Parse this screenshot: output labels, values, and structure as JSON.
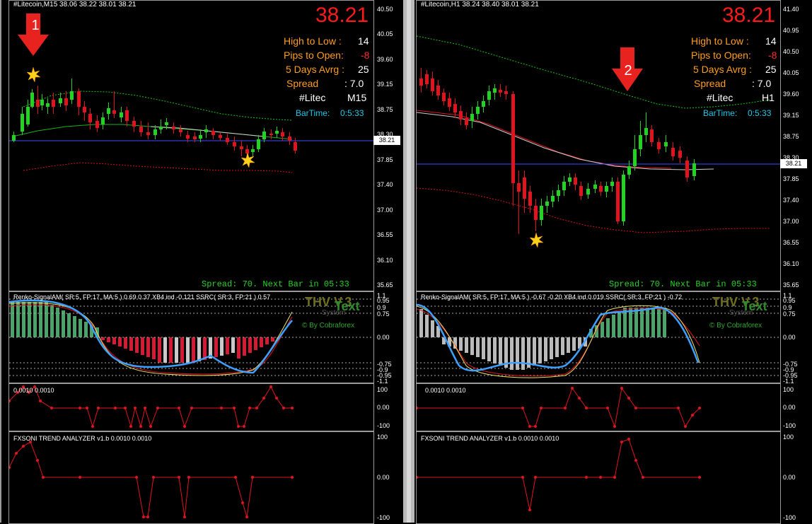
{
  "charts": [
    {
      "id": "left",
      "title": "#Litecoin,M15  38.06 38.22 38.01 38.21",
      "big_price": "38.21",
      "info": {
        "high_to_low_label": "High to Low  :",
        "high_to_low": "14",
        "pips_to_open_label": "Pips to Open:",
        "pips_to_open": "-8",
        "days_avg_label": "5 Days Avrg :",
        "days_avg": "25",
        "spread_label": "Spread",
        "spread": ":   7.0",
        "symbol": "#Litec",
        "timeframe": "M15",
        "bartime_label": "BarTime:",
        "bartime": "0:5:33"
      },
      "arrow_number": "1",
      "spread_line": "Spread: 70. Next Bar in 05:33",
      "price_tag": "38.21",
      "price_ticks": [
        "40.50",
        "40.05",
        "39.60",
        "39.15",
        "38.75",
        "38.30",
        "37.85",
        "37.40",
        "37.00",
        "36.55",
        "36.10",
        "35.65"
      ],
      "renko_label": "Renko-SignalAM( SR:5, FP:17, MA:5 ) 0.69 0.37  XB4 ind -0.121  SSRC( SR:3, FP:21 ) 0.57",
      "renko_ticks": [
        "1.1",
        "0.95",
        "0.9",
        "0.75",
        "0.00",
        "-0.75",
        "-0.9",
        "-0.95",
        "-1.1"
      ],
      "thv": "THV V.3",
      "thv_sub": "System",
      "thv_text": "Text",
      "by": "© By Cobraforex",
      "ind2_label": "0.0010 0.0010",
      "ind2_ticks": [
        "100",
        "0.00",
        "-100"
      ],
      "fx_label": "FXSONI TREND ANALYZER v1.b 0.0010 0.0010",
      "fx_ticks": [
        "100",
        "0.00",
        "-100"
      ]
    },
    {
      "id": "right",
      "title": "#Litecoin,H1  38.24 38.40 38.01 38.21",
      "big_price": "38.21",
      "info": {
        "high_to_low_label": "High to Low  :",
        "high_to_low": "14",
        "pips_to_open_label": "Pips to Open:",
        "pips_to_open": "-8",
        "days_avg_label": "5 Days Avrg :",
        "days_avg": "25",
        "spread_label": "Spread",
        "spread": ":   7.0",
        "symbol": "#Litec",
        "timeframe": "H1",
        "bartime_label": "BarTime:",
        "bartime": "0:5:33"
      },
      "arrow_number": "2",
      "spread_line": "Spread: 70. Next Bar in 05:33",
      "price_tag": "38.21",
      "price_ticks": [
        "41.40",
        "40.95",
        "40.50",
        "40.05",
        "39.60",
        "39.15",
        "38.75",
        "38.30",
        "37.85",
        "37.40",
        "37.00",
        "36.55",
        "36.10",
        "35.65"
      ],
      "renko_label": "Renko-SignalAM( SR:5, FP:17, MA:5 ) -0.67 -0.20  XB4 ind 0.019  SSRC( SR:3, FP:21 ) -0.72",
      "renko_ticks": [
        "1.1",
        "0.95",
        "0.9",
        "0.75",
        "0.00",
        "-0.75",
        "-0.9",
        "-0.95",
        "-1.1"
      ],
      "thv": "THV V.3",
      "thv_sub": "System",
      "thv_text": "Text",
      "by": "© By Cobraforex",
      "ind2_label": "0.0010 0.0010",
      "ind2_ticks": [
        "100",
        "0.00",
        "-100"
      ],
      "fx_label": "FXSONI TREND ANALYZER v1.b 0.0010 0.0010",
      "fx_ticks": [
        "100",
        "0.00",
        "-100"
      ]
    }
  ],
  "colors": {
    "bull": "#22d322",
    "bear": "#e0141e",
    "hline": "#3b4cff",
    "upper_band": "#19c319",
    "lower_band": "#d11919",
    "price_big": "#ff1a1a"
  }
}
